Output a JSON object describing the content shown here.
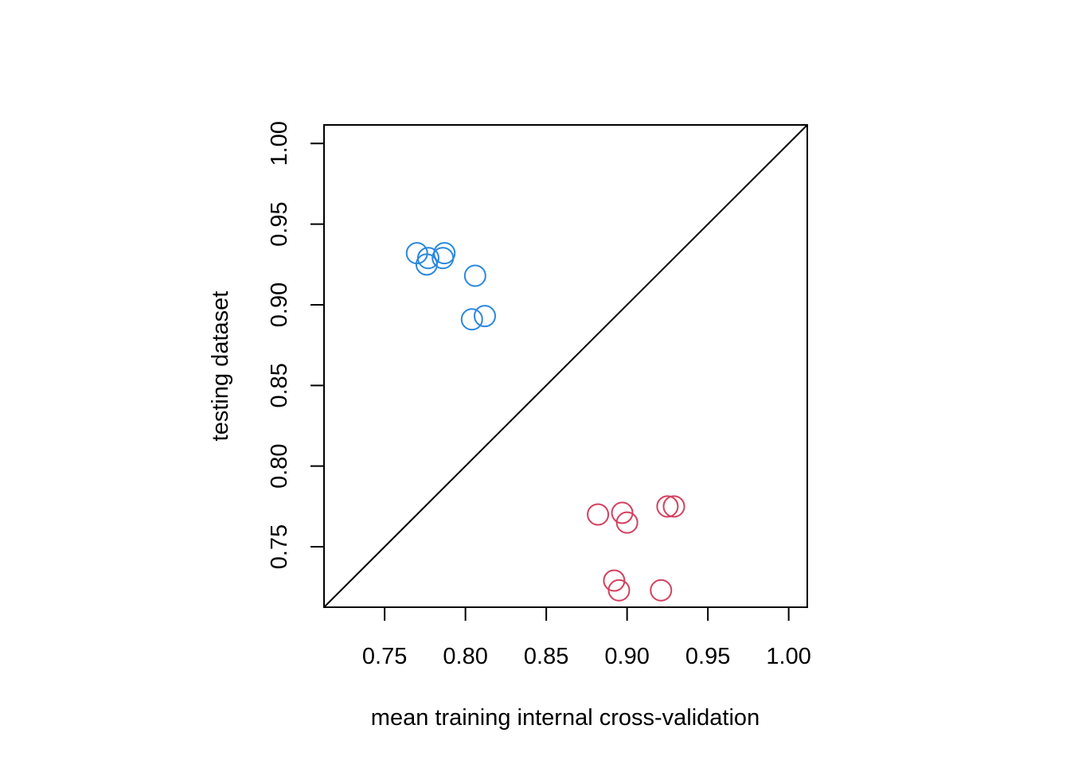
{
  "chart_data": {
    "type": "scatter",
    "xlabel": "mean training internal cross-validation",
    "ylabel": "testing dataset",
    "xlim": [
      0.7125,
      1.0115
    ],
    "ylim": [
      0.7125,
      1.0115
    ],
    "xticks": [
      0.75,
      0.8,
      0.85,
      0.9,
      0.95,
      1.0
    ],
    "yticks": [
      0.75,
      0.8,
      0.85,
      0.9,
      0.95,
      1.0
    ],
    "xtick_labels": [
      "0.75",
      "0.80",
      "0.85",
      "0.90",
      "0.95",
      "1.00"
    ],
    "ytick_labels": [
      "0.75",
      "0.80",
      "0.85",
      "0.90",
      "0.95",
      "1.00"
    ],
    "reference_line": "y = x",
    "grid": false,
    "legend": "none",
    "series": [
      {
        "color": "#2c88de",
        "points": [
          {
            "x": 0.77,
            "y": 0.932
          },
          {
            "x": 0.777,
            "y": 0.929
          },
          {
            "x": 0.776,
            "y": 0.925
          },
          {
            "x": 0.787,
            "y": 0.932
          },
          {
            "x": 0.786,
            "y": 0.929
          },
          {
            "x": 0.806,
            "y": 0.918
          },
          {
            "x": 0.804,
            "y": 0.891
          },
          {
            "x": 0.812,
            "y": 0.893
          }
        ]
      },
      {
        "color": "#d4415f",
        "points": [
          {
            "x": 0.882,
            "y": 0.77
          },
          {
            "x": 0.897,
            "y": 0.771
          },
          {
            "x": 0.9,
            "y": 0.765
          },
          {
            "x": 0.925,
            "y": 0.775
          },
          {
            "x": 0.929,
            "y": 0.775
          },
          {
            "x": 0.892,
            "y": 0.729
          },
          {
            "x": 0.895,
            "y": 0.723
          },
          {
            "x": 0.921,
            "y": 0.723
          }
        ]
      }
    ]
  }
}
